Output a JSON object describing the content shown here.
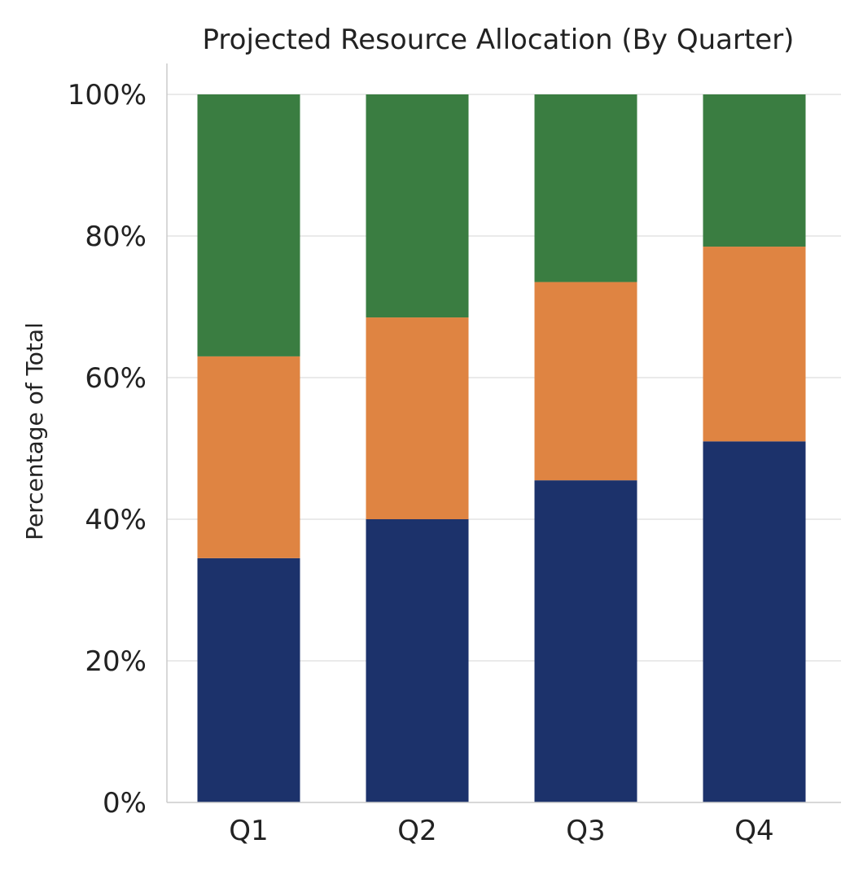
{
  "chart_data": {
    "type": "bar",
    "stacked": true,
    "title": "Projected Resource Allocation (By Quarter)",
    "xlabel": "",
    "ylabel": "Percentage of Total",
    "categories": [
      "Q1",
      "Q2",
      "Q3",
      "Q4"
    ],
    "ylim": [
      0,
      100
    ],
    "yticks": [
      0,
      20,
      40,
      60,
      80,
      100
    ],
    "ytick_labels": [
      "0%",
      "20%",
      "40%",
      "60%",
      "80%",
      "100%"
    ],
    "grid": "horizontal",
    "legend": "none",
    "series": [
      {
        "color": "#1c326b",
        "values": [
          34.5,
          40,
          45.5,
          51
        ]
      },
      {
        "color": "#df8442",
        "values": [
          28.5,
          28.5,
          28,
          27.5
        ]
      },
      {
        "color": "#3a7d41",
        "values": [
          37,
          31.5,
          26.5,
          21.5
        ]
      }
    ]
  }
}
